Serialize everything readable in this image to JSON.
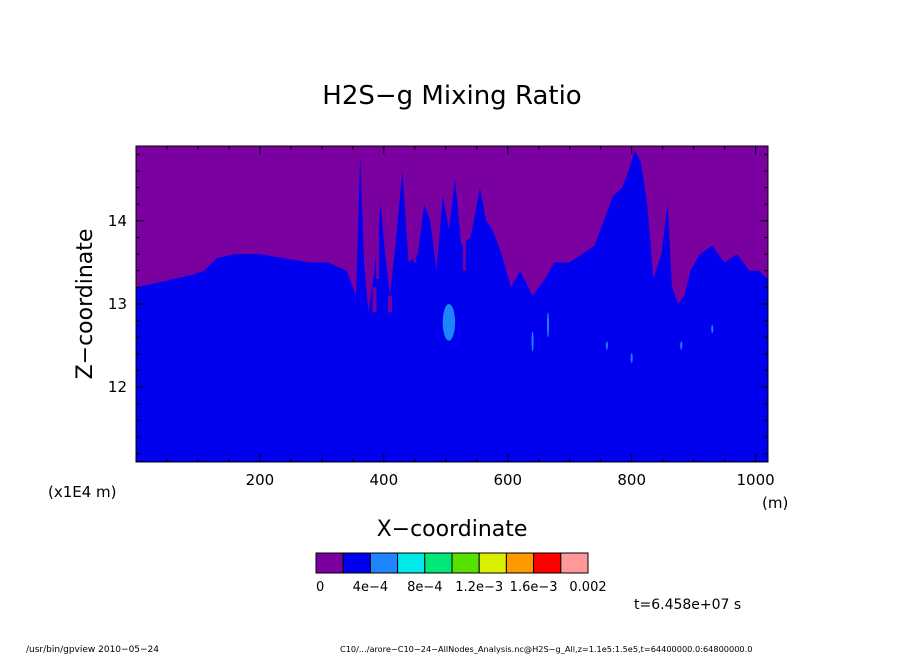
{
  "chart_data": {
    "type": "heatmap",
    "title": "H2S−g Mixing Ratio",
    "xlabel": "X−coordinate",
    "ylabel": "Z−coordinate",
    "x_unit": "(m)",
    "y_unit": "(x1E4 m)",
    "xlim": [
      0,
      1020
    ],
    "ylim": [
      11.1,
      14.9
    ],
    "x_ticks": [
      200,
      400,
      600,
      800,
      1000
    ],
    "y_ticks": [
      12,
      13,
      14
    ],
    "colorbar": {
      "colors": [
        "#7b00a0",
        "#0000ee",
        "#1f85ff",
        "#00e8e8",
        "#00e878",
        "#58e000",
        "#d8f000",
        "#ff9900",
        "#ff0000",
        "#ff9999"
      ],
      "tick_labels": [
        "0",
        "4e−4",
        "8e−4",
        "1.2e−3",
        "1.6e−3",
        "0.002"
      ]
    },
    "background_color": "#7b00a0",
    "fill_color": "#0000ee",
    "boundary": [
      [
        0,
        13.2
      ],
      [
        30,
        13.25
      ],
      [
        60,
        13.3
      ],
      [
        90,
        13.35
      ],
      [
        110,
        13.4
      ],
      [
        130,
        13.55
      ],
      [
        160,
        13.6
      ],
      [
        200,
        13.6
      ],
      [
        240,
        13.55
      ],
      [
        280,
        13.5
      ],
      [
        310,
        13.5
      ],
      [
        340,
        13.4
      ],
      [
        355,
        13.1
      ],
      [
        362,
        14.8
      ],
      [
        368,
        13.5
      ],
      [
        375,
        12.9
      ],
      [
        385,
        13.4
      ],
      [
        395,
        14.2
      ],
      [
        402,
        13.6
      ],
      [
        410,
        13.1
      ],
      [
        420,
        13.8
      ],
      [
        430,
        14.6
      ],
      [
        440,
        13.5
      ],
      [
        455,
        13.6
      ],
      [
        465,
        14.2
      ],
      [
        475,
        14.0
      ],
      [
        485,
        13.4
      ],
      [
        495,
        14.3
      ],
      [
        505,
        13.9
      ],
      [
        515,
        14.5
      ],
      [
        525,
        13.7
      ],
      [
        540,
        13.8
      ],
      [
        555,
        14.4
      ],
      [
        565,
        14.0
      ],
      [
        575,
        13.9
      ],
      [
        590,
        13.6
      ],
      [
        605,
        13.2
      ],
      [
        620,
        13.4
      ],
      [
        640,
        13.1
      ],
      [
        660,
        13.3
      ],
      [
        675,
        13.5
      ],
      [
        700,
        13.5
      ],
      [
        720,
        13.6
      ],
      [
        740,
        13.7
      ],
      [
        755,
        14.0
      ],
      [
        770,
        14.3
      ],
      [
        785,
        14.4
      ],
      [
        795,
        14.6
      ],
      [
        805,
        14.85
      ],
      [
        815,
        14.7
      ],
      [
        825,
        14.2
      ],
      [
        835,
        13.3
      ],
      [
        848,
        13.6
      ],
      [
        858,
        14.2
      ],
      [
        865,
        13.2
      ],
      [
        875,
        13.0
      ],
      [
        885,
        13.1
      ],
      [
        895,
        13.4
      ],
      [
        910,
        13.6
      ],
      [
        930,
        13.7
      ],
      [
        950,
        13.5
      ],
      [
        970,
        13.6
      ],
      [
        990,
        13.4
      ],
      [
        1005,
        13.4
      ],
      [
        1020,
        13.3
      ]
    ],
    "low_spikes": [
      {
        "x": 385,
        "zmin": 12.9,
        "zmax": 13.2
      },
      {
        "x": 410,
        "zmin": 12.9,
        "zmax": 13.1
      }
    ],
    "purple_streaks": [
      {
        "x": 390,
        "zmin": 13.3,
        "zmax": 14.0
      },
      {
        "x": 450,
        "zmin": 13.5,
        "zmax": 14.4
      },
      {
        "x": 530,
        "zmin": 13.4,
        "zmax": 13.9
      }
    ],
    "light_patches": [
      {
        "x": 505,
        "z": 12.78,
        "rx": 10,
        "rz": 0.22,
        "color": "#1f85ff"
      },
      {
        "x": 640,
        "z": 12.55,
        "rx": 1.5,
        "rz": 0.12,
        "color": "#1f85ff"
      },
      {
        "x": 665,
        "z": 12.75,
        "rx": 1.5,
        "rz": 0.15,
        "color": "#1f85ff"
      },
      {
        "x": 760,
        "z": 12.5,
        "rx": 1.5,
        "rz": 0.05,
        "color": "#1f85ff"
      },
      {
        "x": 800,
        "z": 12.35,
        "rx": 1.5,
        "rz": 0.06,
        "color": "#1f85ff"
      },
      {
        "x": 880,
        "z": 12.5,
        "rx": 1.5,
        "rz": 0.05,
        "color": "#1f85ff"
      },
      {
        "x": 930,
        "z": 12.7,
        "rx": 1.5,
        "rz": 0.05,
        "color": "#1f85ff"
      }
    ]
  },
  "time_label": "t=6.458e+07 s",
  "footer": {
    "left": "/usr/bin/gpview   2010−05−24",
    "right": "C10/.../arore−C10−24−AllNodes_Analysis.nc@H2S−g_All,z=1.1e5:1.5e5,t=64400000.0:64800000.0"
  }
}
